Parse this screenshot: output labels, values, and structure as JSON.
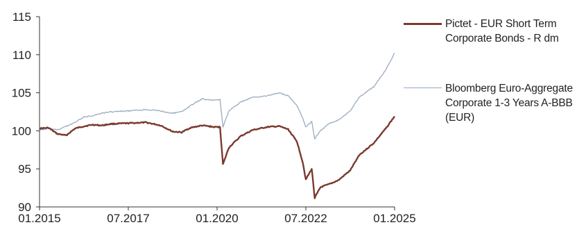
{
  "chart_data": {
    "type": "line",
    "title": "",
    "xlabel": "",
    "ylabel": "",
    "ylim": [
      90,
      115
    ],
    "yticks": [
      90,
      95,
      100,
      105,
      110,
      115
    ],
    "xlim": [
      "2015-01",
      "2025-01"
    ],
    "xticks": [
      "01.2015",
      "07.2017",
      "01.2020",
      "07.2022",
      "01.2025"
    ],
    "grid": false,
    "legend": "right",
    "series": [
      {
        "name": "Pictet - EUR Short Term Corporate Bonds - R dm",
        "color": "#7a3a2e",
        "points": [
          [
            "2015-01",
            100.3
          ],
          [
            "2015-04",
            100.4
          ],
          [
            "2015-07",
            99.6
          ],
          [
            "2015-10",
            99.4
          ],
          [
            "2016-01",
            100.3
          ],
          [
            "2016-04",
            100.6
          ],
          [
            "2016-07",
            100.8
          ],
          [
            "2016-10",
            100.7
          ],
          [
            "2017-01",
            100.9
          ],
          [
            "2017-07",
            101.0
          ],
          [
            "2018-01",
            101.1
          ],
          [
            "2018-06",
            100.7
          ],
          [
            "2018-10",
            99.9
          ],
          [
            "2019-01",
            99.8
          ],
          [
            "2019-04",
            100.4
          ],
          [
            "2019-08",
            100.7
          ],
          [
            "2019-12",
            100.5
          ],
          [
            "2020-02",
            100.5
          ],
          [
            "2020-03",
            95.6
          ],
          [
            "2020-05",
            97.8
          ],
          [
            "2020-09",
            99.3
          ],
          [
            "2021-01",
            100.1
          ],
          [
            "2021-06",
            100.5
          ],
          [
            "2021-10",
            100.6
          ],
          [
            "2022-01",
            100.2
          ],
          [
            "2022-04",
            98.6
          ],
          [
            "2022-06",
            95.8
          ],
          [
            "2022-07",
            93.6
          ],
          [
            "2022-09",
            95.0
          ],
          [
            "2022-10",
            91.2
          ],
          [
            "2022-12",
            92.6
          ],
          [
            "2023-03",
            93.0
          ],
          [
            "2023-06",
            93.5
          ],
          [
            "2023-10",
            94.8
          ],
          [
            "2024-01",
            96.8
          ],
          [
            "2024-06",
            98.4
          ],
          [
            "2024-10",
            100.3
          ],
          [
            "2025-01",
            101.9
          ]
        ]
      },
      {
        "name": "Bloomberg Euro-Aggregate Corporate 1-3 Years A-BBB (EUR)",
        "color": "#9aabbf",
        "points": [
          [
            "2015-01",
            100.1
          ],
          [
            "2015-04",
            100.3
          ],
          [
            "2015-07",
            100.1
          ],
          [
            "2015-10",
            100.6
          ],
          [
            "2016-01",
            101.1
          ],
          [
            "2016-04",
            101.8
          ],
          [
            "2016-07",
            102.0
          ],
          [
            "2016-10",
            102.3
          ],
          [
            "2017-01",
            102.5
          ],
          [
            "2017-07",
            102.6
          ],
          [
            "2018-01",
            102.8
          ],
          [
            "2018-06",
            102.6
          ],
          [
            "2018-10",
            102.3
          ],
          [
            "2019-01",
            102.5
          ],
          [
            "2019-04",
            103.3
          ],
          [
            "2019-08",
            104.2
          ],
          [
            "2019-12",
            104.0
          ],
          [
            "2020-02",
            104.1
          ],
          [
            "2020-03",
            100.5
          ],
          [
            "2020-05",
            102.6
          ],
          [
            "2020-09",
            103.8
          ],
          [
            "2021-01",
            104.4
          ],
          [
            "2021-06",
            104.6
          ],
          [
            "2021-10",
            105.0
          ],
          [
            "2022-01",
            104.6
          ],
          [
            "2022-04",
            103.3
          ],
          [
            "2022-06",
            101.6
          ],
          [
            "2022-07",
            100.5
          ],
          [
            "2022-09",
            101.2
          ],
          [
            "2022-10",
            99.0
          ],
          [
            "2022-12",
            100.0
          ],
          [
            "2023-03",
            101.0
          ],
          [
            "2023-06",
            101.4
          ],
          [
            "2023-10",
            102.6
          ],
          [
            "2024-01",
            104.4
          ],
          [
            "2024-06",
            105.8
          ],
          [
            "2024-10",
            108.0
          ],
          [
            "2025-01",
            110.2
          ]
        ]
      }
    ]
  }
}
